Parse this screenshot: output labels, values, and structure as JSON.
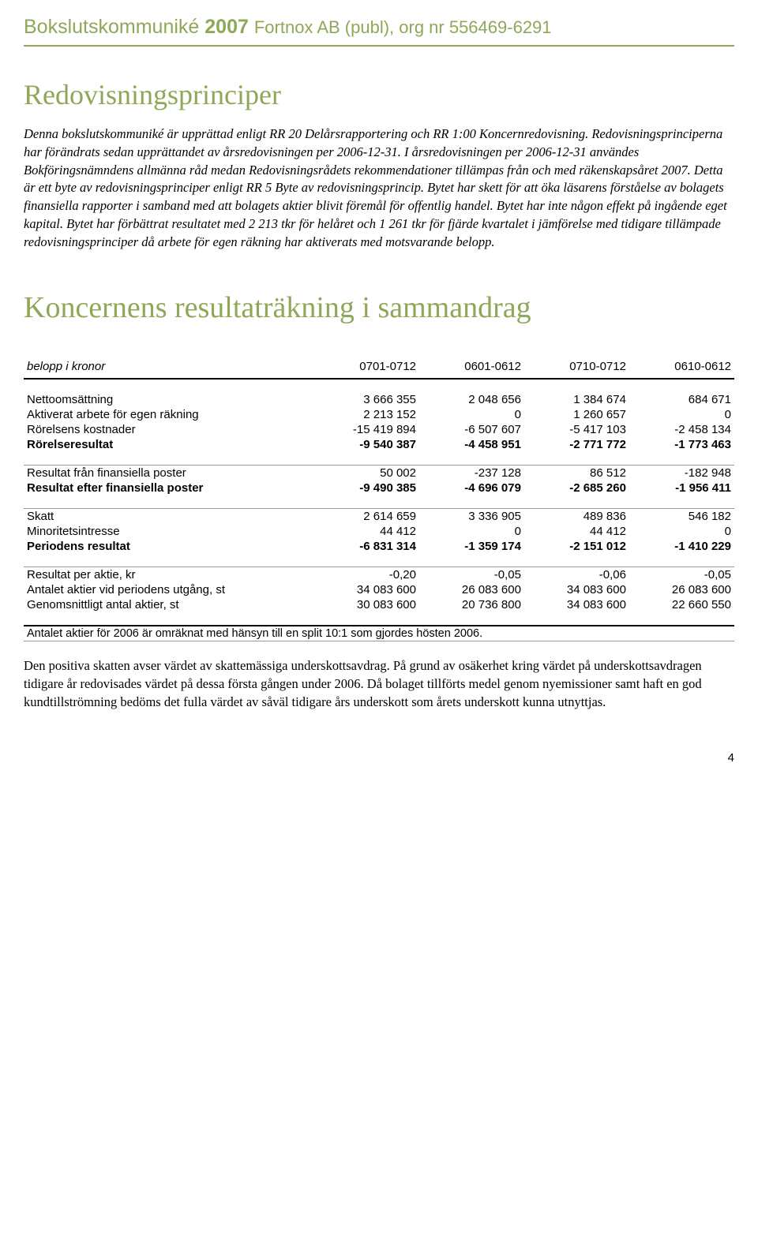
{
  "header": {
    "brand": "Bokslutskommuniké",
    "year": "2007",
    "company": "Fortnox AB (publ), org nr 556469-6291"
  },
  "section1": {
    "title": "Redovisningsprinciper",
    "body": "Denna bokslutskommuniké är upprättad enligt RR 20 Delårsrapportering och RR 1:00 Koncernredovisning. Redovisningsprinciperna har förändrats sedan upprättandet av årsredovisningen per 2006-12-31. I årsredovisningen per 2006-12-31 användes Bokföringsnämndens allmänna råd medan Redovisningsrådets rekommendationer tillämpas från och med räkenskapsåret 2007. Detta är ett byte av redovisningsprinciper enligt RR 5 Byte av redovisningsprincip. Bytet har skett för att öka läsarens förståelse av bolagets finansiella rapporter i samband med att bolagets aktier blivit föremål för offentlig handel. Bytet har inte någon effekt på ingående eget kapital. Bytet har förbättrat resultatet med 2 213 tkr för helåret och 1 261 tkr för fjärde kvartalet i jämförelse med tidigare tillämpade redovisningsprinciper då arbete för egen räkning har aktiverats med motsvarande belopp."
  },
  "section2": {
    "title": "Koncernens resultaträkning i sammandrag"
  },
  "table": {
    "header_label": "belopp i kronor",
    "columns": [
      "0701-0712",
      "0601-0612",
      "0710-0712",
      "0610-0612"
    ],
    "rows": [
      {
        "label": "Nettoomsättning",
        "vals": [
          "3 666 355",
          "2 048 656",
          "1 384 674",
          "684 671"
        ],
        "bold": false
      },
      {
        "label": "Aktiverat arbete för egen räkning",
        "vals": [
          "2 213 152",
          "0",
          "1 260 657",
          "0"
        ],
        "bold": false
      },
      {
        "label": "Rörelsens kostnader",
        "vals": [
          "-15 419 894",
          "-6 507 607",
          "-5 417 103",
          "-2 458 134"
        ],
        "bold": false
      },
      {
        "label": "Rörelseresultat",
        "vals": [
          "-9 540 387",
          "-4 458 951",
          "-2 771 772",
          "-1 773 463"
        ],
        "bold": true
      }
    ],
    "rows2": [
      {
        "label": "Resultat från finansiella poster",
        "vals": [
          "50 002",
          "-237 128",
          "86 512",
          "-182 948"
        ],
        "bold": false
      },
      {
        "label": "Resultat efter finansiella poster",
        "vals": [
          "-9 490 385",
          "-4 696 079",
          "-2 685 260",
          "-1 956 411"
        ],
        "bold": true
      }
    ],
    "rows3": [
      {
        "label": "Skatt",
        "vals": [
          "2 614 659",
          "3 336 905",
          "489 836",
          "546 182"
        ],
        "bold": false
      },
      {
        "label": "Minoritetsintresse",
        "vals": [
          "44 412",
          "0",
          "44 412",
          "0"
        ],
        "bold": false
      },
      {
        "label": "Periodens resultat",
        "vals": [
          "-6 831 314",
          "-1 359 174",
          "-2 151 012",
          "-1 410 229"
        ],
        "bold": true
      }
    ],
    "rows4": [
      {
        "label": "Resultat per aktie, kr",
        "vals": [
          "-0,20",
          "-0,05",
          "-0,06",
          "-0,05"
        ],
        "bold": false
      },
      {
        "label": "Antalet aktier vid periodens utgång, st",
        "vals": [
          "34 083 600",
          "26 083 600",
          "34 083 600",
          "26 083 600"
        ],
        "bold": false
      },
      {
        "label": "Genomsnittligt antal aktier, st",
        "vals": [
          "30 083 600",
          "20 736 800",
          "34 083 600",
          "22 660 550"
        ],
        "bold": false
      }
    ],
    "footnote": "Antalet aktier för 2006 är omräknat med hänsyn till en split 10:1 som gjordes hösten 2006."
  },
  "closing_paragraph": "Den positiva skatten avser värdet av skattemässiga underskottsavdrag. På grund av osäkerhet kring värdet på underskottsavdragen tidigare år redovisades värdet på dessa första gången under 2006. Då bolaget tillförts medel genom nyemissioner samt haft en god kundtillströmning bedöms det fulla värdet av såväl tidigare års underskott som årets underskott kunna utnyttjas.",
  "page_number": "4",
  "styling": {
    "accent_color": "#8fa858",
    "text_color": "#000000",
    "background": "#ffffff",
    "title_fontsize": 36,
    "body_fontsize": 16.5,
    "table_fontsize": 15
  }
}
